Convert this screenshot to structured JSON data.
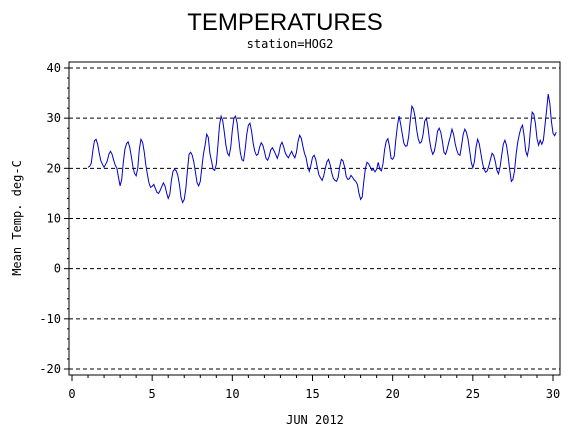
{
  "chart_data": {
    "type": "line",
    "title": "TEMPERATURES",
    "subtitle": "station=HOG2",
    "xlabel": "JUN 2012",
    "ylabel": "Mean Temp. deg-C",
    "xlim": [
      0,
      30
    ],
    "ylim": [
      -20,
      40
    ],
    "x_ticks": [
      0,
      5,
      10,
      15,
      20,
      25,
      30
    ],
    "y_ticks": [
      -20,
      -10,
      0,
      10,
      20,
      30,
      40
    ],
    "grid": "horizontal dashed at each y tick",
    "line_color": "#0000cc",
    "series": [
      {
        "x": [
          1.0,
          1.1,
          1.2,
          1.3,
          1.4,
          1.5,
          1.6,
          1.7,
          1.8,
          1.9,
          2.0,
          2.1,
          2.2,
          2.3,
          2.4,
          2.5,
          2.6,
          2.7,
          2.8,
          2.9,
          3.0,
          3.1,
          3.2,
          3.3,
          3.4,
          3.5,
          3.6,
          3.7,
          3.8,
          3.9,
          4.0,
          4.1,
          4.2,
          4.3,
          4.4,
          4.5,
          4.6,
          4.7,
          4.8,
          4.9,
          5.0,
          5.1,
          5.2,
          5.3,
          5.4,
          5.5,
          5.6,
          5.7,
          5.8,
          5.9,
          6.0,
          6.1,
          6.2,
          6.3,
          6.4,
          6.5,
          6.6,
          6.7,
          6.8,
          6.9,
          7.0,
          7.1,
          7.2,
          7.3,
          7.4,
          7.5,
          7.6,
          7.7,
          7.8,
          7.9,
          8.0,
          8.1,
          8.2,
          8.3,
          8.4,
          8.5,
          8.6,
          8.7,
          8.8,
          8.9,
          9.0,
          9.1,
          9.2,
          9.3,
          9.4,
          9.5,
          9.6,
          9.7,
          9.8,
          9.9,
          10.0,
          10.1,
          10.2,
          10.3,
          10.4,
          10.5,
          10.6,
          10.7,
          10.8,
          10.9,
          11.0,
          11.1,
          11.2,
          11.3,
          11.4,
          11.5,
          11.6,
          11.7,
          11.8,
          11.9,
          12.0,
          12.1,
          12.2,
          12.3,
          12.4,
          12.5,
          12.6,
          12.7,
          12.8,
          12.9,
          13.0,
          13.1,
          13.2,
          13.3,
          13.4,
          13.5,
          13.6,
          13.7,
          13.8,
          13.9,
          14.0,
          14.1,
          14.2,
          14.3,
          14.4,
          14.5,
          14.6,
          14.7,
          14.8,
          14.9,
          15.0,
          15.1,
          15.2,
          15.3,
          15.4,
          15.5,
          15.6,
          15.7,
          15.8,
          15.9,
          16.0,
          16.1,
          16.2,
          16.3,
          16.4,
          16.5,
          16.6,
          16.7,
          16.8,
          16.9,
          17.0,
          17.1,
          17.2,
          17.3,
          17.4,
          17.5,
          17.6,
          17.7,
          17.8,
          17.9,
          18.0,
          18.1,
          18.2,
          18.3,
          18.4,
          18.5,
          18.6,
          18.7,
          18.8,
          18.9,
          19.0,
          19.1,
          19.2,
          19.3,
          19.4,
          19.5,
          19.6,
          19.7,
          19.8,
          19.9,
          20.0,
          20.1,
          20.2,
          20.3,
          20.4,
          20.5,
          20.6,
          20.7,
          20.8,
          20.9,
          21.0,
          21.1,
          21.2,
          21.3,
          21.4,
          21.5,
          21.6,
          21.7,
          21.8,
          21.9,
          22.0,
          22.1,
          22.2,
          22.3,
          22.4,
          22.5,
          22.6,
          22.7,
          22.8,
          22.9,
          23.0,
          23.1,
          23.2,
          23.3,
          23.4,
          23.5,
          23.6,
          23.7,
          23.8,
          23.9,
          24.0,
          24.1,
          24.2,
          24.3,
          24.4,
          24.5,
          24.6,
          24.7,
          24.8,
          24.9,
          25.0,
          25.1,
          25.2,
          25.3,
          25.4,
          25.5,
          25.6,
          25.7,
          25.8,
          25.9,
          26.0,
          26.1,
          26.2,
          26.3,
          26.4,
          26.5,
          26.6,
          26.7,
          26.8,
          26.9,
          27.0,
          27.1,
          27.2,
          27.3,
          27.4,
          27.5,
          27.6,
          27.7,
          27.8,
          27.9,
          28.0,
          28.1,
          28.2,
          28.3,
          28.4,
          28.5,
          28.6,
          28.7,
          28.8,
          28.9,
          29.0,
          29.1,
          29.2,
          29.3,
          29.4,
          29.5,
          29.6,
          29.7,
          29.8,
          29.9,
          30.0,
          30.1,
          30.2
        ],
        "y": [
          20.2,
          20.4,
          21.0,
          23.5,
          25.5,
          25.8,
          24.8,
          23.0,
          21.5,
          20.8,
          20.2,
          20.8,
          21.5,
          22.8,
          23.4,
          22.8,
          21.6,
          20.6,
          20.0,
          18.2,
          16.5,
          17.8,
          21.2,
          23.8,
          24.9,
          25.3,
          24.2,
          22.4,
          20.3,
          19.0,
          18.5,
          20.0,
          23.8,
          25.8,
          25.2,
          23.4,
          20.8,
          18.8,
          17.1,
          16.2,
          16.4,
          16.8,
          16.0,
          15.2,
          15.0,
          15.6,
          16.4,
          17.1,
          16.5,
          15.1,
          14.0,
          14.8,
          17.6,
          19.4,
          19.8,
          19.5,
          18.6,
          16.8,
          14.2,
          13.2,
          13.8,
          16.0,
          19.6,
          22.8,
          23.2,
          22.6,
          21.2,
          19.2,
          17.1,
          16.5,
          17.4,
          20.2,
          22.9,
          24.6,
          26.8,
          26.2,
          23.0,
          21.5,
          19.8,
          19.6,
          20.8,
          24.5,
          28.6,
          30.4,
          29.5,
          27.2,
          24.6,
          23.0,
          22.5,
          24.2,
          27.6,
          30.0,
          30.4,
          29.0,
          25.8,
          23.1,
          21.7,
          21.5,
          23.8,
          26.8,
          28.6,
          29.0,
          27.4,
          25.0,
          23.4,
          22.6,
          22.8,
          24.2,
          25.1,
          24.6,
          23.4,
          22.0,
          21.6,
          22.4,
          23.7,
          24.1,
          23.5,
          22.8,
          22.0,
          22.9,
          24.6,
          25.2,
          24.3,
          23.1,
          22.5,
          22.1,
          22.8,
          23.4,
          22.6,
          22.1,
          23.2,
          25.4,
          26.6,
          26.0,
          24.4,
          23.0,
          22.1,
          20.4,
          19.4,
          20.6,
          22.2,
          22.6,
          21.8,
          20.2,
          18.7,
          18.1,
          17.6,
          18.5,
          20.0,
          21.3,
          21.8,
          20.7,
          19.1,
          18.0,
          17.6,
          17.4,
          18.2,
          20.4,
          21.8,
          21.5,
          20.3,
          18.4,
          17.8,
          17.9,
          18.6,
          18.2,
          17.7,
          17.4,
          16.8,
          15.0,
          13.8,
          14.3,
          17.4,
          20.0,
          21.2,
          20.9,
          20.3,
          19.6,
          19.8,
          19.3,
          19.8,
          21.2,
          19.8,
          19.5,
          21.0,
          23.8,
          25.4,
          25.9,
          24.4,
          22.0,
          21.8,
          22.4,
          25.8,
          28.6,
          30.4,
          28.8,
          26.8,
          25.0,
          24.4,
          24.5,
          26.4,
          29.6,
          32.4,
          31.8,
          30.2,
          27.6,
          25.8,
          25.0,
          25.3,
          26.8,
          29.4,
          30.0,
          28.2,
          25.6,
          23.8,
          22.8,
          23.4,
          25.2,
          27.4,
          28.0,
          27.2,
          25.4,
          23.2,
          22.8,
          23.8,
          25.2,
          26.4,
          27.8,
          26.8,
          24.9,
          23.6,
          22.8,
          22.6,
          24.6,
          26.8,
          27.8,
          27.2,
          25.8,
          23.6,
          21.2,
          20.1,
          21.4,
          24.2,
          25.8,
          24.9,
          23.0,
          21.1,
          19.8,
          19.2,
          19.5,
          20.5,
          21.8,
          23.0,
          22.6,
          21.4,
          19.6,
          18.9,
          20.3,
          22.6,
          24.8,
          25.6,
          24.6,
          22.4,
          19.7,
          17.4,
          17.8,
          19.5,
          22.8,
          25.2,
          26.8,
          28.0,
          28.6,
          26.4,
          23.4,
          22.5,
          24.2,
          28.0,
          31.2,
          30.8,
          29.0,
          26.0,
          24.6,
          25.6,
          24.8,
          25.6,
          28.6,
          31.6,
          34.8,
          33.0,
          29.4,
          27.0,
          26.5,
          27.2
        ]
      }
    ]
  }
}
